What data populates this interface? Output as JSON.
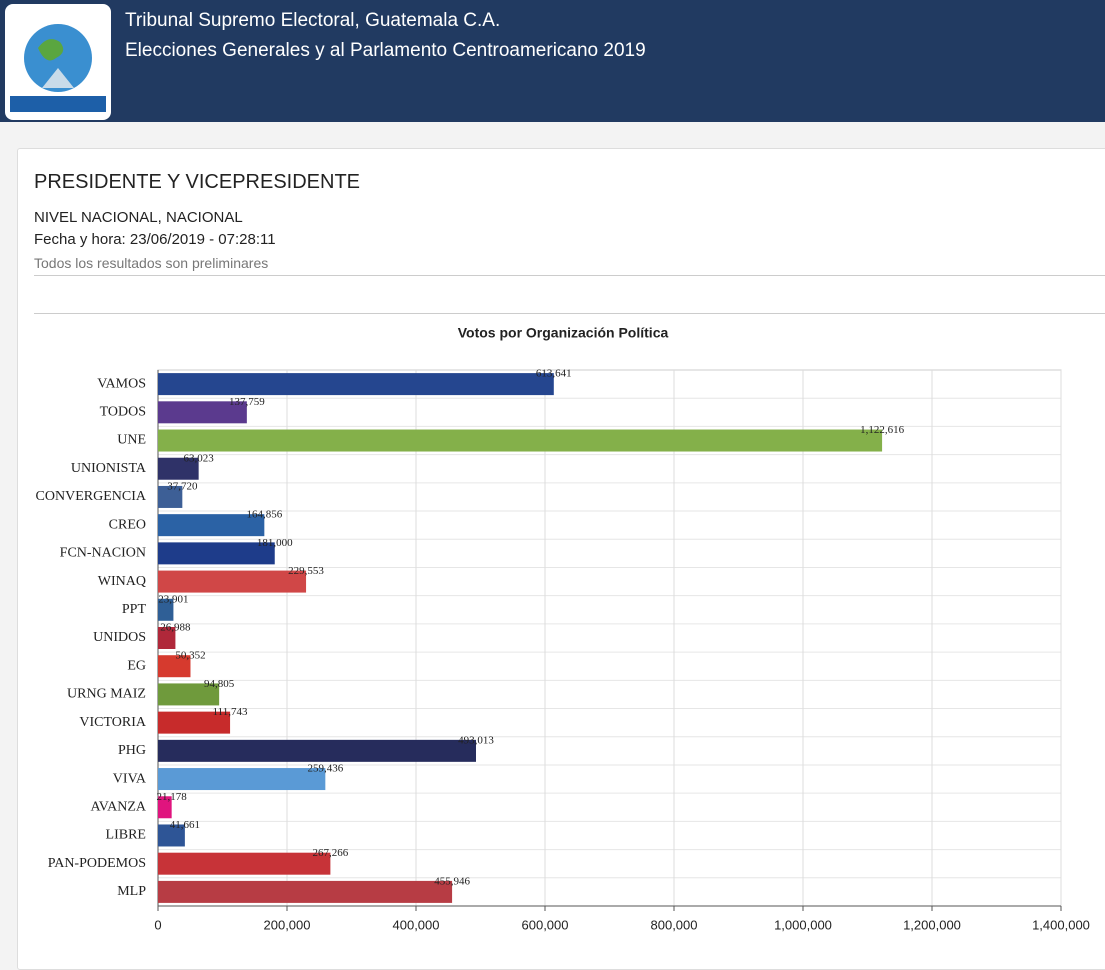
{
  "header": {
    "title": "Tribunal Supremo Electoral, Guatemala C.A.",
    "subtitle": "Elecciones Generales y al Parlamento Centroamericano 2019"
  },
  "card": {
    "heading": "PRESIDENTE Y VICEPRESIDENTE",
    "level": "NIVEL NACIONAL, NACIONAL",
    "datetime": "Fecha y hora: 23/06/2019 - 07:28:11",
    "note": "Todos los resultados son preliminares"
  },
  "chart_data": {
    "type": "hbar",
    "title": "Votos por Organización Política",
    "categories": [
      "VAMOS",
      "TODOS",
      "UNE",
      "UNIONISTA",
      "CONVERGENCIA",
      "CREO",
      "FCN-NACION",
      "WINAQ",
      "PPT",
      "UNIDOS",
      "EG",
      "URNG MAIZ",
      "VICTORIA",
      "PHG",
      "VIVA",
      "AVANZA",
      "LIBRE",
      "PAN-PODEMOS",
      "MLP"
    ],
    "values": [
      613641,
      137759,
      1122616,
      63023,
      37720,
      164856,
      181000,
      229553,
      23901,
      26988,
      50352,
      94805,
      111743,
      493013,
      259436,
      21178,
      41661,
      267266,
      455946
    ],
    "value_labels": [
      "613,641",
      "137,759",
      "1,122,616",
      "63,023",
      "37,720",
      "164,856",
      "181,000",
      "229,553",
      "23,901",
      "26,988",
      "50,352",
      "94,805",
      "111,743",
      "493,013",
      "259,436",
      "21,178",
      "41,661",
      "267,266",
      "455,946"
    ],
    "colors": [
      "#25468f",
      "#5b3a8e",
      "#84b04a",
      "#2f3268",
      "#3d5f96",
      "#2b62a5",
      "#1e3c8a",
      "#d04747",
      "#2f5f96",
      "#b0283a",
      "#d63a2e",
      "#6f9a3c",
      "#c72b2b",
      "#262c5c",
      "#5a9ad6",
      "#e0147e",
      "#2e5596",
      "#c73338",
      "#b73c44"
    ],
    "xlim": [
      0,
      1400000
    ],
    "xticks": [
      0,
      {
        "value": 200000,
        "label": "200,000"
      },
      {
        "value": 400000,
        "label": "400,000"
      },
      {
        "value": 600000,
        "label": "600,000"
      },
      {
        "value": 800000,
        "label": "800,000"
      },
      {
        "value": 1000000,
        "label": "1,000,000"
      },
      {
        "value": 1200000,
        "label": "1,200,000"
      },
      {
        "value": 1400000,
        "label": "1,400,000"
      }
    ],
    "grid": true
  }
}
